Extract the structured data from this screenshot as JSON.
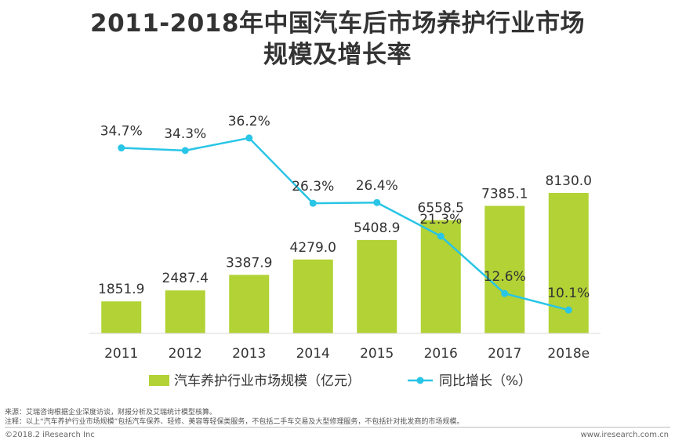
{
  "title_line1": "2011-2018年中国汽车后市场养护行业市场",
  "title_line2": "规模及增长率",
  "chart_data": {
    "type": "bar",
    "categories": [
      "2011",
      "2012",
      "2013",
      "2014",
      "2015",
      "2016",
      "2017",
      "2018e"
    ],
    "series": [
      {
        "name": "汽车养护行业市场规模（亿元）",
        "type": "bar",
        "values": [
          1851.9,
          2487.4,
          3387.9,
          4279.0,
          5408.9,
          6558.5,
          7385.1,
          8130.0
        ],
        "labels": [
          "1851.9",
          "2487.4",
          "3387.9",
          "4279.0",
          "5408.9",
          "6558.5",
          "7385.1",
          "8130.0"
        ],
        "color": "#b2d235"
      },
      {
        "name": "同比增长（%）",
        "type": "line",
        "values": [
          34.7,
          34.3,
          36.2,
          26.3,
          26.4,
          21.3,
          12.6,
          10.1
        ],
        "labels": [
          "34.7%",
          "34.3%",
          "36.2%",
          "26.3%",
          "26.4%",
          "21.3%",
          "12.6%",
          "10.1%"
        ],
        "color": "#29c5e6"
      }
    ],
    "ylim": [
      0,
      8500
    ],
    "y2lim": [
      0,
      40
    ],
    "legend_position": "bottom",
    "grid": false
  },
  "footer": {
    "source": "来源：艾瑞咨询根据企业深度访谈，财报分析及艾瑞统计模型核算。",
    "note": "注释：以上“汽车养护行业市场规模”包括汽车保养、轻修、美容等轻保类服务，不包括二手车交易及大型修理服务，不包括针对批发商的市场规模。",
    "copyright": "©2018.2 iResearch Inc",
    "website": "www.iresearch.com.cn"
  }
}
